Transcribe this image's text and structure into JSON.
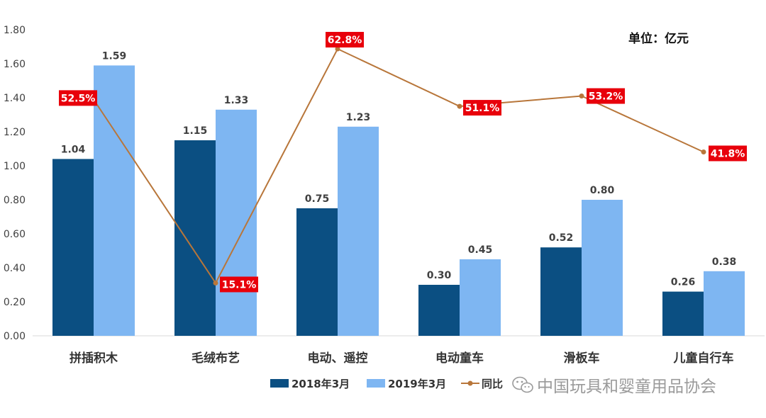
{
  "chart_data": {
    "type": "bar",
    "unit_label": "单位：亿元",
    "categories": [
      "拼插积木",
      "毛绒布艺",
      "电动、遥控",
      "电动童车",
      "滑板车",
      "儿童自行车"
    ],
    "series": [
      {
        "name": "2018年3月",
        "type": "bar",
        "color": "#0B4F82",
        "values": [
          1.04,
          1.15,
          0.75,
          0.3,
          0.52,
          0.26
        ],
        "labels": [
          "1.04",
          "1.15",
          "0.75",
          "0.30",
          "0.52",
          "0.26"
        ]
      },
      {
        "name": "2019年3月",
        "type": "bar",
        "color": "#7EB6F2",
        "values": [
          1.59,
          1.33,
          1.23,
          0.45,
          0.8,
          0.38
        ],
        "labels": [
          "1.59",
          "1.33",
          "1.23",
          "0.45",
          "0.80",
          "0.38"
        ]
      },
      {
        "name": "同比",
        "type": "line",
        "color": "#B8763A",
        "values": [
          52.5,
          15.1,
          62.8,
          51.1,
          53.2,
          41.8
        ],
        "labels": [
          "52.5%",
          "15.1%",
          "62.8%",
          "51.1%",
          "53.2%",
          "41.8%"
        ],
        "label_bg": "#E8000B"
      }
    ],
    "ylim": [
      0,
      1.8
    ],
    "yticks": [
      "0.00",
      "0.20",
      "0.40",
      "0.60",
      "0.80",
      "1.00",
      "1.20",
      "1.40",
      "1.60",
      "1.80"
    ],
    "grid": false,
    "legend": "bottom-center"
  },
  "watermark": {
    "text": "中国玩具和婴童用品协会",
    "icon": "wechat-icon"
  }
}
